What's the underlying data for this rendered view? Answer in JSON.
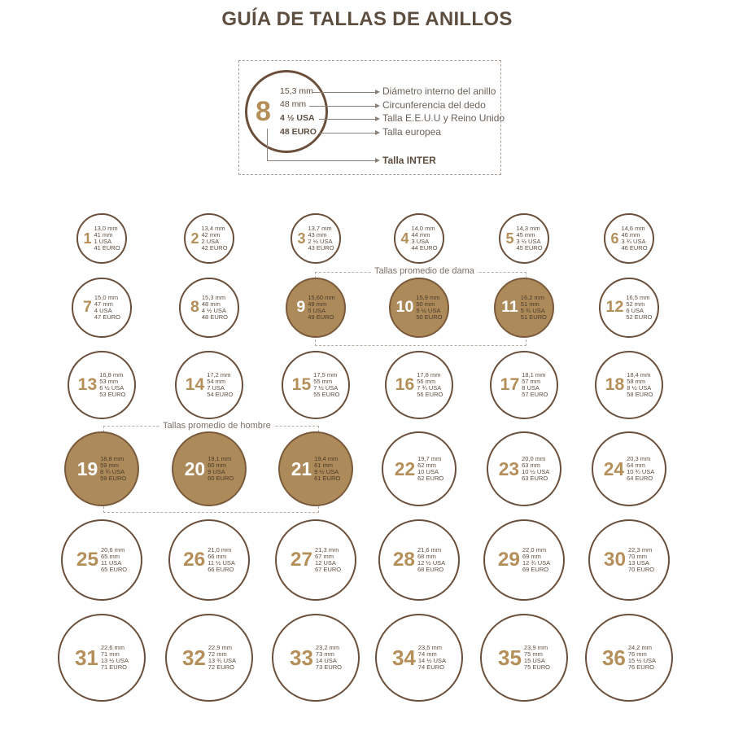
{
  "title": "GUÍA DE TALLAS DE ANILLOS",
  "legend": {
    "number": "8",
    "diameter": "15,3 mm",
    "circumference": "48 mm",
    "usa": "4 ½ USA",
    "euro": "48 EURO",
    "desc_diameter": "Diámetro interno del anillo",
    "desc_circumference": "Circunferencia del dedo",
    "desc_usa": "Talla E.E.U.U y Reino Unido",
    "desc_euro": "Talla europea",
    "desc_inter": "Talla INTER"
  },
  "groups": {
    "dama": "Tallas promedio de dama",
    "hombre": "Tallas promedio de hombre"
  },
  "rings": [
    {
      "n": "1",
      "mm": "13,0 mm",
      "c": "41 mm",
      "usa": "1 USA",
      "eu": "41 EURO",
      "hl": false
    },
    {
      "n": "2",
      "mm": "13,4 mm",
      "c": "42 mm",
      "usa": "2 USA",
      "eu": "42 EURO",
      "hl": false
    },
    {
      "n": "3",
      "mm": "13,7 mm",
      "c": "43 mm",
      "usa": "2 ½ USA",
      "eu": "43 EURO",
      "hl": false
    },
    {
      "n": "4",
      "mm": "14,0 mm",
      "c": "44 mm",
      "usa": "3 USA",
      "eu": "44 EURO",
      "hl": false
    },
    {
      "n": "5",
      "mm": "14,3 mm",
      "c": "45 mm",
      "usa": "3 ½ USA",
      "eu": "45 EURO",
      "hl": false
    },
    {
      "n": "6",
      "mm": "14,6 mm",
      "c": "46 mm",
      "usa": "3 ¾ USA",
      "eu": "46 EURO",
      "hl": false
    },
    {
      "n": "7",
      "mm": "15,0 mm",
      "c": "47 mm",
      "usa": "4 USA",
      "eu": "47 EURO",
      "hl": false
    },
    {
      "n": "8",
      "mm": "15,3 mm",
      "c": "48 mm",
      "usa": "4 ½ USA",
      "eu": "48 EURO",
      "hl": false
    },
    {
      "n": "9",
      "mm": "15,60 mm",
      "c": "49 mm",
      "usa": "5 USA",
      "eu": "49 EURO",
      "hl": true
    },
    {
      "n": "10",
      "mm": "15,9 mm",
      "c": "50 mm",
      "usa": "5 ½ USA",
      "eu": "50 EURO",
      "hl": true
    },
    {
      "n": "11",
      "mm": "16,2 mm",
      "c": "51 mm",
      "usa": "5 ¾ USA",
      "eu": "51 EURO",
      "hl": true
    },
    {
      "n": "12",
      "mm": "16,5 mm",
      "c": "52 mm",
      "usa": "6 USA",
      "eu": "52 EURO",
      "hl": false
    },
    {
      "n": "13",
      "mm": "16,8 mm",
      "c": "53 mm",
      "usa": "6 ½ USA",
      "eu": "53 EURO",
      "hl": false
    },
    {
      "n": "14",
      "mm": "17,2 mm",
      "c": "54 mm",
      "usa": "7 USA",
      "eu": "54 EURO",
      "hl": false
    },
    {
      "n": "15",
      "mm": "17,5 mm",
      "c": "55 mm",
      "usa": "7 ½ USA",
      "eu": "55 EURO",
      "hl": false
    },
    {
      "n": "16",
      "mm": "17,8 mm",
      "c": "56 mm",
      "usa": "7 ¾ USA",
      "eu": "56 EURO",
      "hl": false
    },
    {
      "n": "17",
      "mm": "18,1 mm",
      "c": "57 mm",
      "usa": "8 USA",
      "eu": "57 EURO",
      "hl": false
    },
    {
      "n": "18",
      "mm": "18,4 mm",
      "c": "58 mm",
      "usa": "8 ½ USA",
      "eu": "58 EURO",
      "hl": false
    },
    {
      "n": "19",
      "mm": "18,8 mm",
      "c": "59 mm",
      "usa": "8 ¾ USA",
      "eu": "59 EURO",
      "hl": true
    },
    {
      "n": "20",
      "mm": "19,1 mm",
      "c": "60 mm",
      "usa": "9 USA",
      "eu": "60 EURO",
      "hl": true
    },
    {
      "n": "21",
      "mm": "19,4 mm",
      "c": "61 mm",
      "usa": "9 ½ USA",
      "eu": "61 EURO",
      "hl": true
    },
    {
      "n": "22",
      "mm": "19,7 mm",
      "c": "62 mm",
      "usa": "10 USA",
      "eu": "62 EURO",
      "hl": false
    },
    {
      "n": "23",
      "mm": "20,0 mm",
      "c": "63 mm",
      "usa": "10 ½ USA",
      "eu": "63 EURO",
      "hl": false
    },
    {
      "n": "24",
      "mm": "20,3 mm",
      "c": "64 mm",
      "usa": "10 ¾ USA",
      "eu": "64 EURO",
      "hl": false
    },
    {
      "n": "25",
      "mm": "20,6 mm",
      "c": "65 mm",
      "usa": "11 USA",
      "eu": "65 EURO",
      "hl": false
    },
    {
      "n": "26",
      "mm": "21,0 mm",
      "c": "66 mm",
      "usa": "11 ½ USA",
      "eu": "66 EURO",
      "hl": false
    },
    {
      "n": "27",
      "mm": "21,3 mm",
      "c": "67 mm",
      "usa": "12 USA",
      "eu": "67 EURO",
      "hl": false
    },
    {
      "n": "28",
      "mm": "21,6 mm",
      "c": "68 mm",
      "usa": "12 ½ USA",
      "eu": "68 EURO",
      "hl": false
    },
    {
      "n": "29",
      "mm": "22,0 mm",
      "c": "69 mm",
      "usa": "12 ¾ USA",
      "eu": "69 EURO",
      "hl": false
    },
    {
      "n": "30",
      "mm": "22,3 mm",
      "c": "70 mm",
      "usa": "13 USA",
      "eu": "70 EURO",
      "hl": false
    },
    {
      "n": "31",
      "mm": "22,6 mm",
      "c": "71 mm",
      "usa": "13 ½ USA",
      "eu": "71 EURO",
      "hl": false
    },
    {
      "n": "32",
      "mm": "22,9 mm",
      "c": "72 mm",
      "usa": "13 ¾ USA",
      "eu": "72 EURO",
      "hl": false
    },
    {
      "n": "33",
      "mm": "23,2 mm",
      "c": "73 mm",
      "usa": "14 USA",
      "eu": "73 EURO",
      "hl": false
    },
    {
      "n": "34",
      "mm": "23,5 mm",
      "c": "74 mm",
      "usa": "14 ½ USA",
      "eu": "74 EURO",
      "hl": false
    },
    {
      "n": "35",
      "mm": "23,9 mm",
      "c": "75 mm",
      "usa": "15 USA",
      "eu": "75 EURO",
      "hl": false
    },
    {
      "n": "36",
      "mm": "24,2 mm",
      "c": "76 mm",
      "usa": "15 ½ USA",
      "eu": "76 EURO",
      "hl": false
    }
  ]
}
